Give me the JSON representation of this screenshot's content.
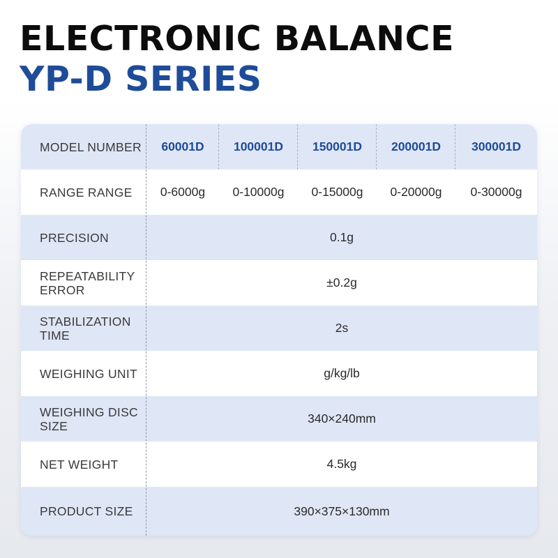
{
  "header": {
    "title": "ELECTRONIC BALANCE",
    "subtitle": "YP-D SERIES"
  },
  "spec_table": {
    "model_row": {
      "label": "MODEL NUMBER",
      "models": [
        "60001D",
        "100001D",
        "150001D",
        "200001D",
        "300001D"
      ]
    },
    "range_row": {
      "label": "RANGE RANGE",
      "values": [
        "0-6000g",
        "0-10000g",
        "0-15000g",
        "0-20000g",
        "0-30000g"
      ]
    },
    "shared_rows": [
      {
        "label_lines": [
          "PRECISION"
        ],
        "value": "0.1g"
      },
      {
        "label_lines": [
          "REPEATABILITY",
          "ERROR"
        ],
        "value": "±0.2g"
      },
      {
        "label_lines": [
          "STABILIZATION",
          "TIME"
        ],
        "value": "2s"
      },
      {
        "label_lines": [
          "WEIGHING UNIT"
        ],
        "value": "g/kg/lb"
      },
      {
        "label_lines": [
          "WEIGHING DISC",
          "SIZE"
        ],
        "value": "340×240mm"
      },
      {
        "label_lines": [
          "NET WEIGHT"
        ],
        "value": "4.5kg"
      },
      {
        "label_lines": [
          "PRODUCT SIZE"
        ],
        "value": "390×375×130mm"
      }
    ]
  },
  "colors": {
    "accent_blue": "#1e4c99",
    "row_shade": "#dfe6f6",
    "title_black": "#0c0c0c"
  }
}
